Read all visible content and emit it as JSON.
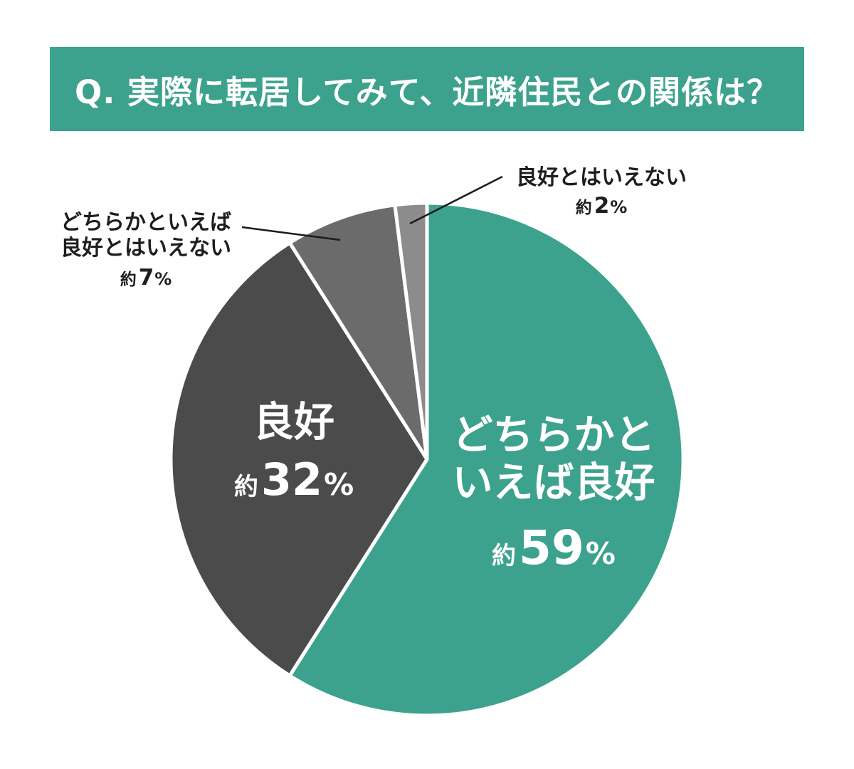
{
  "header": {
    "title": "Q. 実際に転居してみて、近隣住民との関係は？",
    "bg_color": "#3CA28D",
    "text_color": "#FFFFFF"
  },
  "chart_data": {
    "type": "pie",
    "title": "実際に転居してみて、近隣住民との関係は？",
    "unit": "%",
    "value_prefix": "約",
    "direction": "clockwise",
    "start_angle_deg": 0,
    "legend_position": "none",
    "slices": [
      {
        "label": "どちらかといえば良好",
        "value": 59,
        "display": "約59%",
        "color": "#3CA28D",
        "label_position": "inside"
      },
      {
        "label": "良好",
        "value": 32,
        "display": "約32%",
        "color": "#4B4B4B",
        "label_position": "inside"
      },
      {
        "label": "どちらかといえば良好とはいえない",
        "value": 7,
        "display": "約7%",
        "color": "#6B6B6B",
        "label_position": "outside-left"
      },
      {
        "label": "良好とはいえない",
        "value": 2,
        "display": "約2%",
        "color": "#8C8C8C",
        "label_position": "outside-right"
      }
    ]
  },
  "labels": {
    "slice59": {
      "line1": "どちらかと",
      "line2": "いえば良好",
      "prefix": "約",
      "value": "59",
      "unit": "%"
    },
    "slice32": {
      "line1": "良好",
      "prefix": "約",
      "value": "32",
      "unit": "%"
    },
    "slice7": {
      "line1": "どちらかといえば",
      "line2": "良好とはいえない",
      "prefix": "約",
      "value": "7",
      "unit": "%"
    },
    "slice2": {
      "line1": "良好とはいえない",
      "prefix": "約",
      "value": "2",
      "unit": "%"
    }
  }
}
